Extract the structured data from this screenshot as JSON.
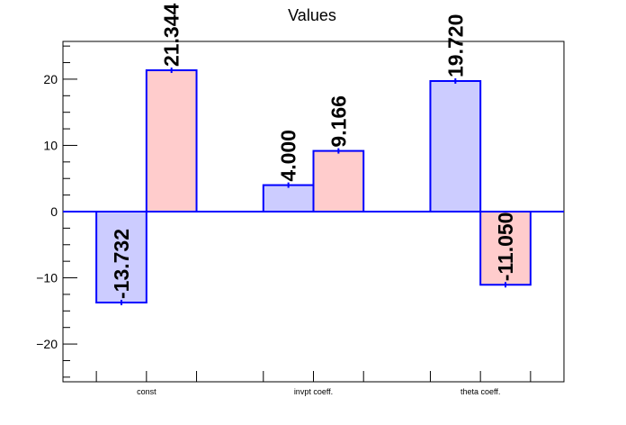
{
  "chart_data": {
    "type": "bar",
    "title": "Values",
    "categories": [
      "const",
      "invpt coeff.",
      "theta coeff."
    ],
    "series": [
      {
        "values": [
          -13.732,
          4.0,
          19.72
        ],
        "labels": [
          "-13.732",
          "4.000",
          "19.720"
        ],
        "color": "#ccccff"
      },
      {
        "values": [
          21.344,
          9.166,
          -11.05
        ],
        "labels": [
          "21.344",
          "9.166",
          "-11.050"
        ],
        "color": "#ffcccc"
      }
    ],
    "ylim": [
      -25.7,
      25.7
    ],
    "yticks": [
      -20,
      -10,
      0,
      10,
      20
    ],
    "ytick_labels": [
      "−20",
      "−10",
      "0",
      "10",
      "20"
    ],
    "outline_color": "#0000ff",
    "grid": false
  }
}
